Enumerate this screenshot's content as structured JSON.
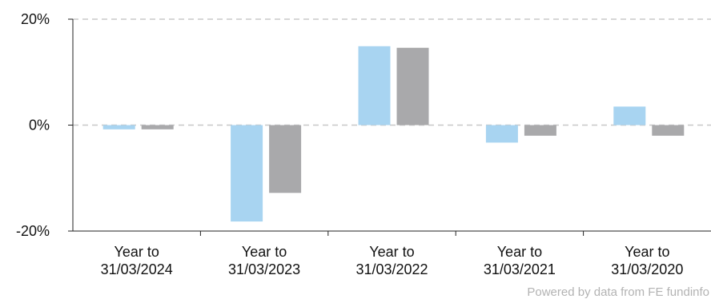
{
  "chart_data": {
    "type": "bar",
    "categories": [
      [
        "Year to",
        "31/03/2024"
      ],
      [
        "Year to",
        "31/03/2023"
      ],
      [
        "Year to",
        "31/03/2022"
      ],
      [
        "Year to",
        "31/03/2021"
      ],
      [
        "Year to",
        "31/03/2020"
      ]
    ],
    "series": [
      {
        "color": "#a8d4f1",
        "values": [
          -0.8,
          -18.2,
          14.9,
          -3.3,
          3.5
        ]
      },
      {
        "color": "#a9a9ab",
        "values": [
          -0.8,
          -12.8,
          14.6,
          -2.0,
          -2.0
        ]
      }
    ],
    "ylim": [
      -20,
      20
    ],
    "yticks": [
      20,
      0,
      -20
    ],
    "ytick_labels": [
      "20%",
      "0%",
      "-20%"
    ],
    "grid": true,
    "xlabel": "",
    "ylabel": "",
    "title": ""
  },
  "credit_text": "Powered by data from FE fundinfo"
}
